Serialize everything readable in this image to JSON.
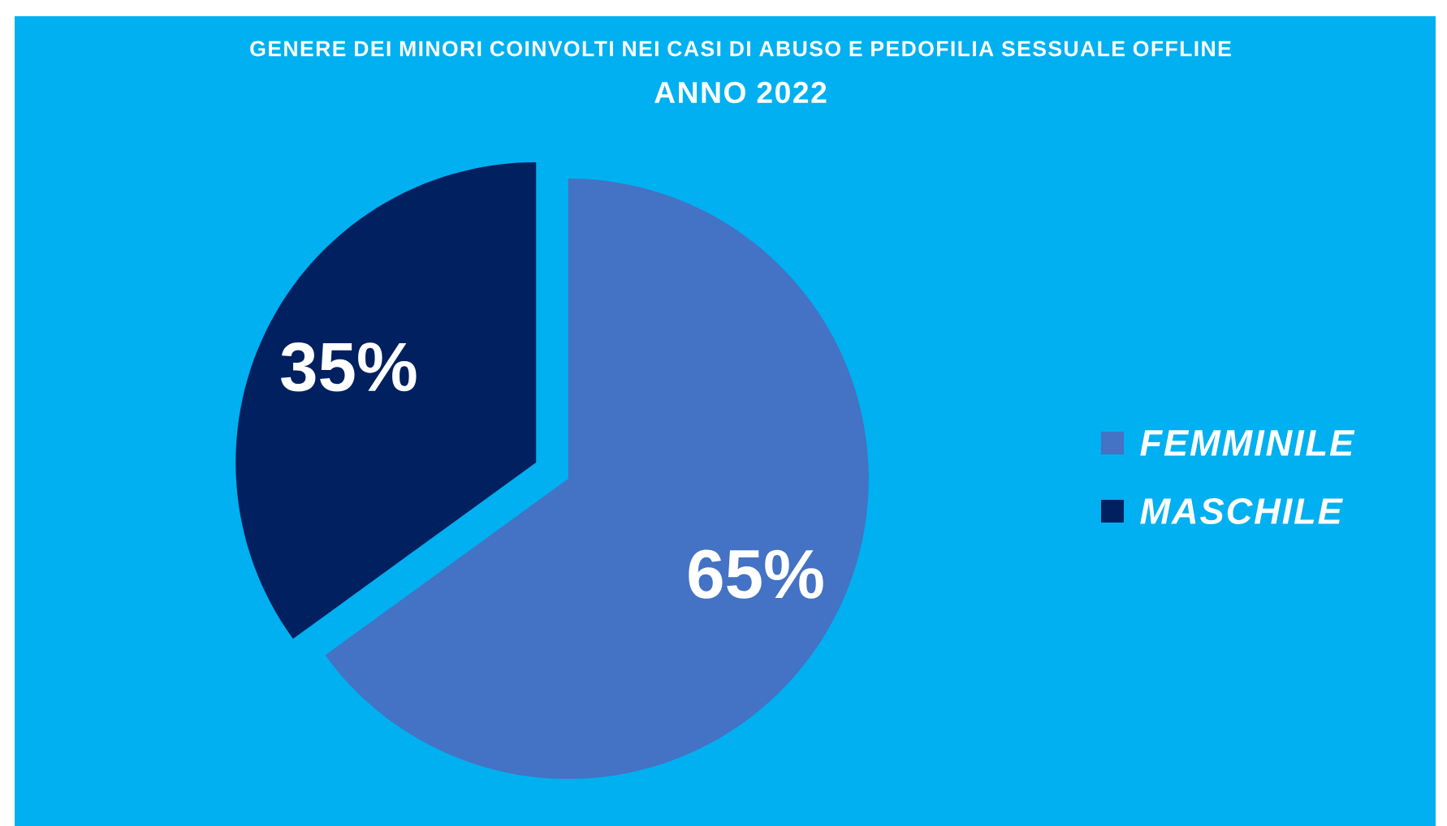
{
  "chart_data": {
    "type": "pie",
    "title": "GENERE DEI MINORI COINVOLTI NEI CASI DI ABUSO E PEDOFILIA SESSUALE OFFLINE",
    "subtitle": "ANNO 2022",
    "categories": [
      "FEMMINILE",
      "MASCHILE"
    ],
    "values": [
      65,
      35
    ],
    "value_labels": [
      "65%",
      "35%"
    ],
    "colors": [
      "#4472c4",
      "#002060"
    ],
    "legend": "right"
  }
}
